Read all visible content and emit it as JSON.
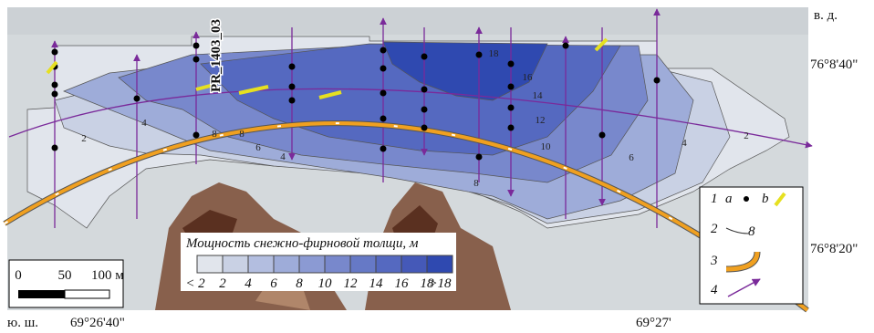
{
  "coordinates": {
    "top_right": "в. д.",
    "lat_top": "76°8'40\"",
    "lat_bottom": "76°8'20\"",
    "bottom_left": "ю. ш.",
    "lon_left": "69°26'40\"",
    "lon_right": "69°27'"
  },
  "profile_label": "PR_1403_03",
  "contour_labels": [
    2,
    4,
    8,
    8,
    6,
    4,
    8,
    18,
    16,
    14,
    12,
    10,
    6,
    4,
    2
  ],
  "scale_bar": {
    "labels": [
      "0",
      "50",
      "100 м"
    ]
  },
  "thickness_legend": {
    "title": "Мощность снежно-фирновой толщи, м",
    "colors": [
      "#e1e5ec",
      "#c9d1e4",
      "#b3bee0",
      "#9eacd9",
      "#8b9ad3",
      "#7888cc",
      "#6679c6",
      "#5569c0",
      "#4559b8",
      "#2f49b0"
    ],
    "labels": [
      "< 2",
      "2",
      "4",
      "6",
      "8",
      "10",
      "12",
      "14",
      "16",
      "18",
      ">18"
    ]
  },
  "key": {
    "items": [
      {
        "number": "1",
        "a": "a",
        "b": "b"
      },
      {
        "number": "2",
        "sample": "8"
      },
      {
        "number": "3"
      },
      {
        "number": "4"
      }
    ]
  }
}
